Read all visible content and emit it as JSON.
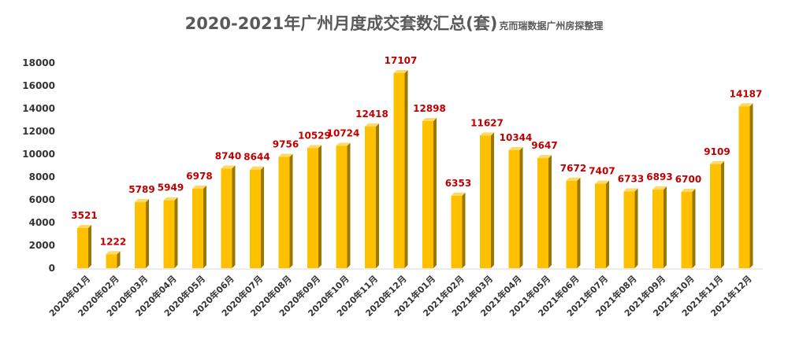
{
  "chart_data": {
    "type": "bar",
    "title": "2020-2021年广州月度成交套数汇总(套)",
    "subtitle": "克而瑞数据广州房探整理",
    "xlabel": "",
    "ylabel": "",
    "ylim": [
      0,
      18000
    ],
    "yticks": [
      0,
      2000,
      4000,
      6000,
      8000,
      10000,
      12000,
      14000,
      16000,
      18000
    ],
    "grid": false,
    "legend": "none",
    "categories": [
      "2020年01月",
      "2020年02月",
      "2020年03月",
      "2020年04月",
      "2020年05月",
      "2020年06月",
      "2020年07月",
      "2020年08月",
      "2020年09月",
      "2020年10月",
      "2020年11月",
      "2020年12月",
      "2021年01月",
      "2021年02月",
      "2021年03月",
      "2021年04月",
      "2021年05月",
      "2021年06月",
      "2021年07月",
      "2021年08月",
      "2021年09月",
      "2021年10月",
      "2021年11月",
      "2021年12月"
    ],
    "values": [
      3521,
      1222,
      5789,
      5949,
      6978,
      8740,
      8644,
      9756,
      10529,
      10724,
      12418,
      17107,
      12898,
      6353,
      11627,
      10344,
      9647,
      7672,
      7407,
      6733,
      6893,
      6700,
      9109,
      14187
    ],
    "colors": {
      "bar_front": "#ffc000",
      "bar_side": "#9c7700",
      "bar_top": "#ffd966",
      "data_label": "#c00000"
    }
  }
}
